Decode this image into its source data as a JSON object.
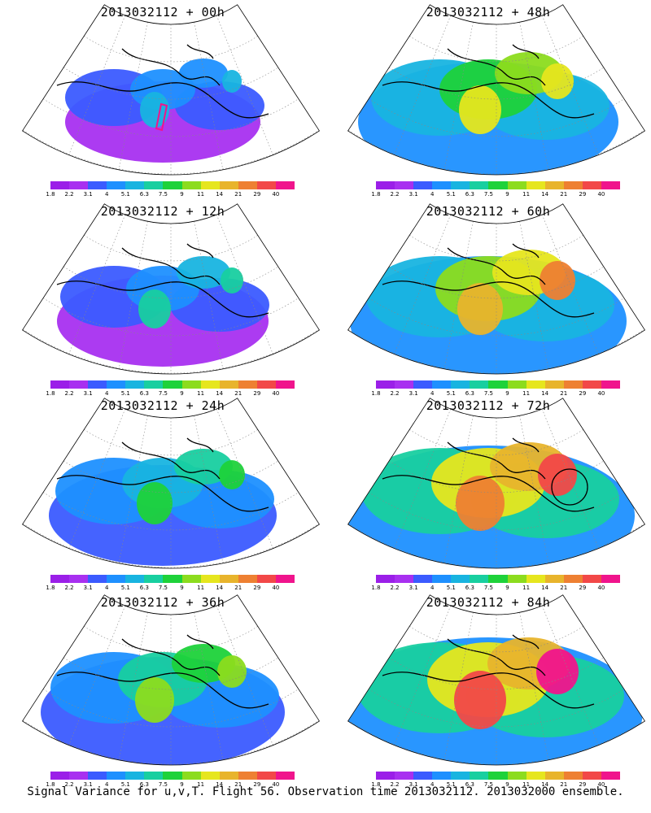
{
  "palette": [
    "#9b1fe8",
    "#a830f0",
    "#3b5bff",
    "#1e90ff",
    "#18b4e0",
    "#18cfa0",
    "#1ed23a",
    "#8cdc1e",
    "#e6e61e",
    "#e8b42c",
    "#ee8032",
    "#f24848",
    "#f0148c"
  ],
  "colorbar_labels": [
    "1.8",
    "2.2",
    "3.1",
    "4",
    "5.1",
    "6.3",
    "7.5",
    "9",
    "11",
    "14",
    "21",
    "29",
    "40"
  ],
  "panels": [
    {
      "title": "2013032112 + 00h",
      "lead_hours": 0,
      "intensity": 0,
      "marker": "flight-track"
    },
    {
      "title": "2013032112 + 12h",
      "lead_hours": 12,
      "intensity": 1,
      "marker": ""
    },
    {
      "title": "2013032112 + 24h",
      "lead_hours": 24,
      "intensity": 2,
      "marker": ""
    },
    {
      "title": "2013032112 + 36h",
      "lead_hours": 36,
      "intensity": 3,
      "marker": ""
    },
    {
      "title": "2013032112 + 48h",
      "lead_hours": 48,
      "intensity": 4,
      "marker": ""
    },
    {
      "title": "2013032112 + 60h",
      "lead_hours": 60,
      "intensity": 5,
      "marker": ""
    },
    {
      "title": "2013032112 + 72h",
      "lead_hours": 72,
      "intensity": 6,
      "marker": "circle"
    },
    {
      "title": "2013032112 + 84h",
      "lead_hours": 84,
      "intensity": 7,
      "marker": ""
    }
  ],
  "caption": "Signal Variance for u,v,T. Flight 56. Observation time 2013032112. 2013032000 ensemble."
}
